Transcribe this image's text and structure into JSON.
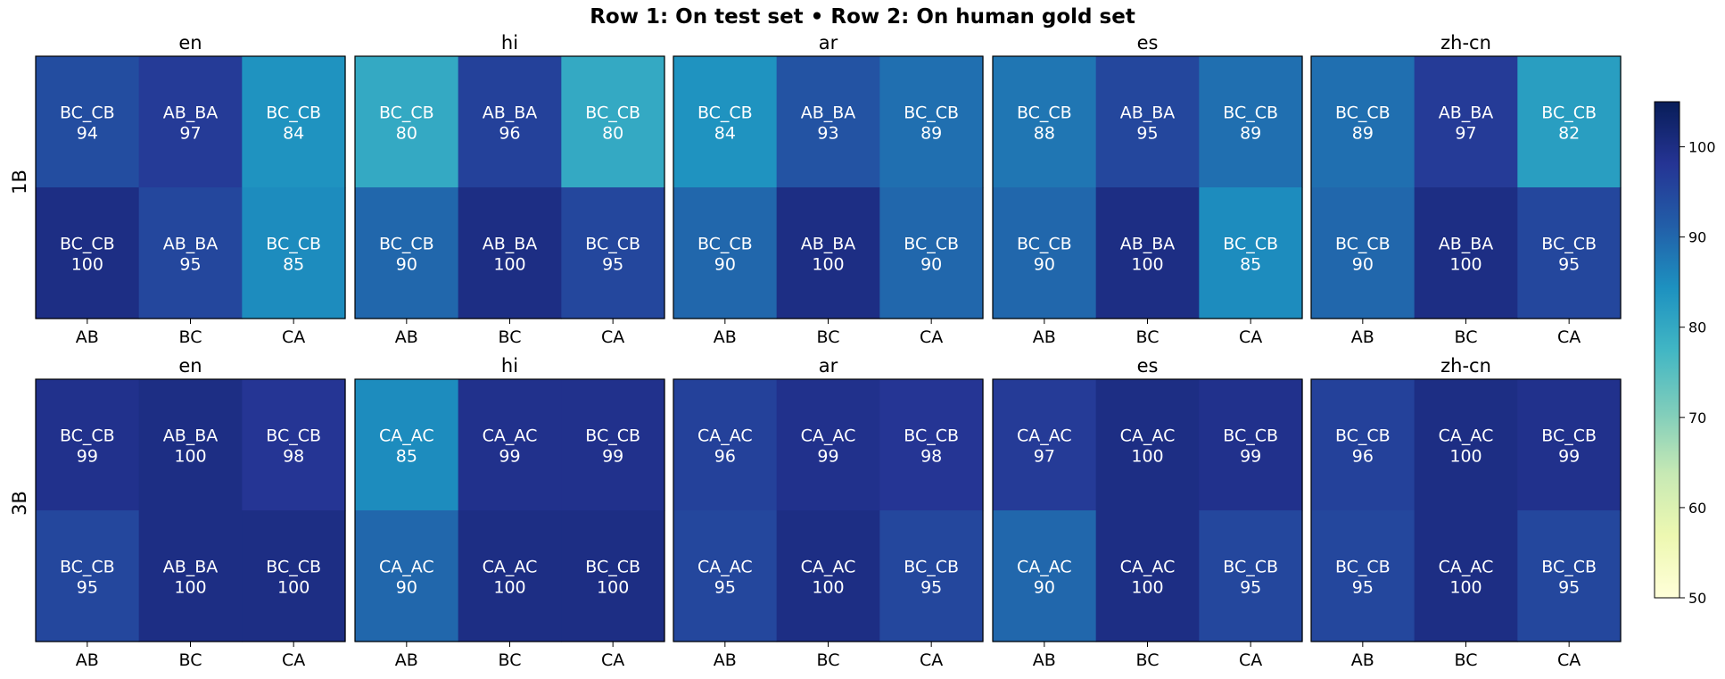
{
  "suptitle": "Row 1: On test set  •  Row 2: On human gold set",
  "row_labels": [
    "1B",
    "3B"
  ],
  "colorbar": {
    "ticks": [
      50,
      60,
      70,
      80,
      90,
      100
    ],
    "range": [
      50,
      105
    ],
    "colormap": "YlGnBu"
  },
  "chart_data": [
    {
      "type": "heatmap",
      "model": "1B",
      "title": "en",
      "x_categories": [
        "AB",
        "BC",
        "CA"
      ],
      "cells": [
        [
          {
            "label": "BC_CB",
            "value": 94
          },
          {
            "label": "AB_BA",
            "value": 97
          },
          {
            "label": "BC_CB",
            "value": 84
          }
        ],
        [
          {
            "label": "BC_CB",
            "value": 100
          },
          {
            "label": "AB_BA",
            "value": 95
          },
          {
            "label": "BC_CB",
            "value": 85
          }
        ]
      ]
    },
    {
      "type": "heatmap",
      "model": "1B",
      "title": "hi",
      "x_categories": [
        "AB",
        "BC",
        "CA"
      ],
      "cells": [
        [
          {
            "label": "BC_CB",
            "value": 80
          },
          {
            "label": "AB_BA",
            "value": 96
          },
          {
            "label": "BC_CB",
            "value": 80
          }
        ],
        [
          {
            "label": "BC_CB",
            "value": 90
          },
          {
            "label": "AB_BA",
            "value": 100
          },
          {
            "label": "BC_CB",
            "value": 95
          }
        ]
      ]
    },
    {
      "type": "heatmap",
      "model": "1B",
      "title": "ar",
      "x_categories": [
        "AB",
        "BC",
        "CA"
      ],
      "cells": [
        [
          {
            "label": "BC_CB",
            "value": 84
          },
          {
            "label": "AB_BA",
            "value": 93
          },
          {
            "label": "BC_CB",
            "value": 89
          }
        ],
        [
          {
            "label": "BC_CB",
            "value": 90
          },
          {
            "label": "AB_BA",
            "value": 100
          },
          {
            "label": "BC_CB",
            "value": 90
          }
        ]
      ]
    },
    {
      "type": "heatmap",
      "model": "1B",
      "title": "es",
      "x_categories": [
        "AB",
        "BC",
        "CA"
      ],
      "cells": [
        [
          {
            "label": "BC_CB",
            "value": 88
          },
          {
            "label": "AB_BA",
            "value": 95
          },
          {
            "label": "BC_CB",
            "value": 89
          }
        ],
        [
          {
            "label": "BC_CB",
            "value": 90
          },
          {
            "label": "AB_BA",
            "value": 100
          },
          {
            "label": "BC_CB",
            "value": 85
          }
        ]
      ]
    },
    {
      "type": "heatmap",
      "model": "1B",
      "title": "zh-cn",
      "x_categories": [
        "AB",
        "BC",
        "CA"
      ],
      "cells": [
        [
          {
            "label": "BC_CB",
            "value": 89
          },
          {
            "label": "AB_BA",
            "value": 97
          },
          {
            "label": "BC_CB",
            "value": 82
          }
        ],
        [
          {
            "label": "BC_CB",
            "value": 90
          },
          {
            "label": "AB_BA",
            "value": 100
          },
          {
            "label": "BC_CB",
            "value": 95
          }
        ]
      ]
    },
    {
      "type": "heatmap",
      "model": "3B",
      "title": "en",
      "x_categories": [
        "AB",
        "BC",
        "CA"
      ],
      "cells": [
        [
          {
            "label": "BC_CB",
            "value": 99
          },
          {
            "label": "AB_BA",
            "value": 100
          },
          {
            "label": "BC_CB",
            "value": 98
          }
        ],
        [
          {
            "label": "BC_CB",
            "value": 95
          },
          {
            "label": "AB_BA",
            "value": 100
          },
          {
            "label": "BC_CB",
            "value": 100
          }
        ]
      ]
    },
    {
      "type": "heatmap",
      "model": "3B",
      "title": "hi",
      "x_categories": [
        "AB",
        "BC",
        "CA"
      ],
      "cells": [
        [
          {
            "label": "CA_AC",
            "value": 85
          },
          {
            "label": "CA_AC",
            "value": 99
          },
          {
            "label": "BC_CB",
            "value": 99
          }
        ],
        [
          {
            "label": "CA_AC",
            "value": 90
          },
          {
            "label": "CA_AC",
            "value": 100
          },
          {
            "label": "BC_CB",
            "value": 100
          }
        ]
      ]
    },
    {
      "type": "heatmap",
      "model": "3B",
      "title": "ar",
      "x_categories": [
        "AB",
        "BC",
        "CA"
      ],
      "cells": [
        [
          {
            "label": "CA_AC",
            "value": 96
          },
          {
            "label": "CA_AC",
            "value": 99
          },
          {
            "label": "BC_CB",
            "value": 98
          }
        ],
        [
          {
            "label": "CA_AC",
            "value": 95
          },
          {
            "label": "CA_AC",
            "value": 100
          },
          {
            "label": "BC_CB",
            "value": 95
          }
        ]
      ]
    },
    {
      "type": "heatmap",
      "model": "3B",
      "title": "es",
      "x_categories": [
        "AB",
        "BC",
        "CA"
      ],
      "cells": [
        [
          {
            "label": "CA_AC",
            "value": 97
          },
          {
            "label": "CA_AC",
            "value": 100
          },
          {
            "label": "BC_CB",
            "value": 99
          }
        ],
        [
          {
            "label": "CA_AC",
            "value": 90
          },
          {
            "label": "CA_AC",
            "value": 100
          },
          {
            "label": "BC_CB",
            "value": 95
          }
        ]
      ]
    },
    {
      "type": "heatmap",
      "model": "3B",
      "title": "zh-cn",
      "x_categories": [
        "AB",
        "BC",
        "CA"
      ],
      "cells": [
        [
          {
            "label": "BC_CB",
            "value": 96
          },
          {
            "label": "CA_AC",
            "value": 100
          },
          {
            "label": "BC_CB",
            "value": 99
          }
        ],
        [
          {
            "label": "BC_CB",
            "value": 95
          },
          {
            "label": "CA_AC",
            "value": 100
          },
          {
            "label": "BC_CB",
            "value": 95
          }
        ]
      ]
    }
  ]
}
